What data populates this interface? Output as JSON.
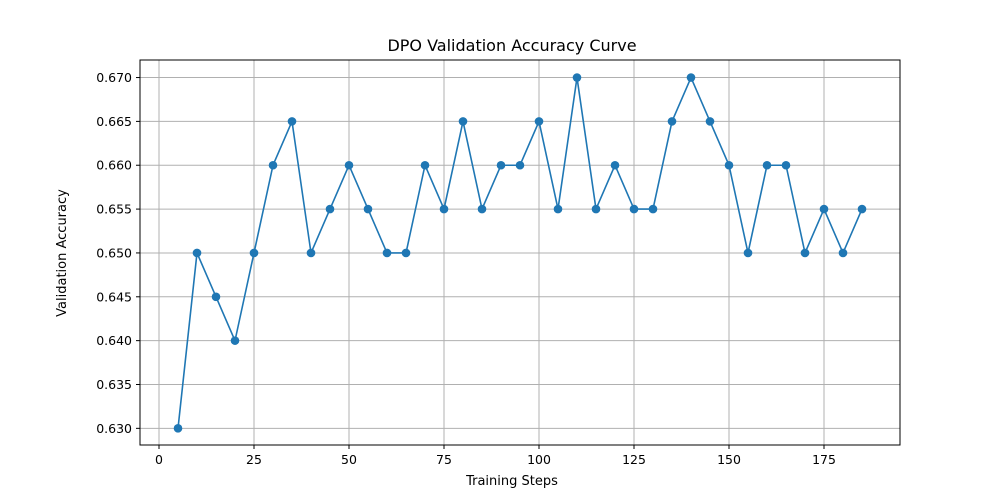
{
  "chart_data": {
    "type": "line",
    "title": "DPO Validation Accuracy Curve",
    "xlabel": "Training Steps",
    "ylabel": "Validation Accuracy",
    "xlim": [
      -5,
      195
    ],
    "ylim": [
      0.6281,
      0.672
    ],
    "xticks": [
      0,
      25,
      50,
      75,
      100,
      125,
      150,
      175
    ],
    "yticks": [
      0.63,
      0.635,
      0.64,
      0.645,
      0.65,
      0.655,
      0.66,
      0.665,
      0.67
    ],
    "ytick_decimals": 3,
    "grid": true,
    "line_color": "#1f77b4",
    "marker": "circle",
    "series": [
      {
        "x": [
          5,
          10,
          15,
          20,
          25,
          30,
          35,
          40,
          45,
          50,
          55,
          60,
          65,
          70,
          75,
          80,
          85,
          90,
          95,
          100,
          105,
          110,
          115,
          120,
          125,
          130,
          135,
          140,
          145,
          150,
          155,
          160,
          165,
          170,
          175,
          180,
          185
        ],
        "values": [
          0.63,
          0.65,
          0.645,
          0.64,
          0.65,
          0.66,
          0.665,
          0.65,
          0.655,
          0.66,
          0.655,
          0.65,
          0.65,
          0.66,
          0.655,
          0.665,
          0.655,
          0.66,
          0.66,
          0.665,
          0.655,
          0.67,
          0.655,
          0.66,
          0.655,
          0.655,
          0.665,
          0.67,
          0.665,
          0.66,
          0.65,
          0.66,
          0.66,
          0.65,
          0.655,
          0.65,
          0.655
        ]
      }
    ]
  }
}
